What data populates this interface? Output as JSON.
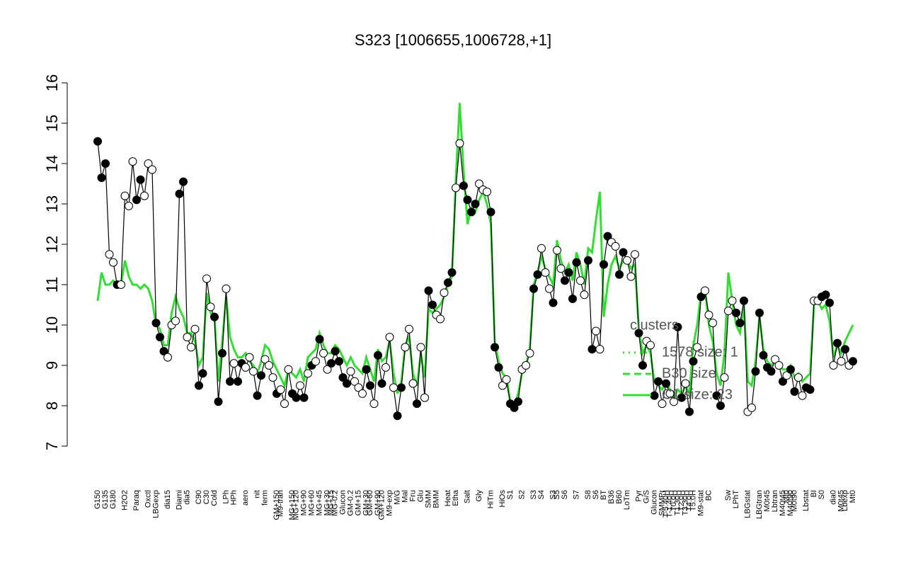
{
  "chart_data": {
    "type": "line",
    "title": "S323 [1006655,1006728,+1]",
    "ylim": [
      7,
      16
    ],
    "yticks": [
      7,
      8,
      9,
      10,
      11,
      12,
      13,
      14,
      15,
      16
    ],
    "categories": [
      "G150",
      null,
      "G135",
      null,
      "G180",
      null,
      null,
      "H2O2",
      null,
      null,
      "Paraq",
      null,
      null,
      "Oxctl",
      null,
      "LBGexp",
      null,
      null,
      "dia15",
      null,
      null,
      "Diami",
      null,
      "dia5",
      null,
      null,
      "C90",
      null,
      "C30",
      null,
      "Cold",
      null,
      null,
      "LPh",
      null,
      "HPh",
      null,
      null,
      "aero",
      null,
      null,
      "nit",
      null,
      "ferm",
      null,
      null,
      "GM+150",
      "M9-tran",
      null,
      null,
      "MG+150",
      "MG+120",
      null,
      "MG+90",
      null,
      "MG+60",
      null,
      "MG+45",
      null,
      "MG+30",
      "MG+15",
      "MG-0.2",
      null,
      "Glucon",
      null,
      "GM-0.2",
      null,
      "GM+15",
      null,
      "GM+30",
      "GM+60",
      null,
      "GM+90",
      "GM+120",
      null,
      "M9-exp",
      null,
      "M/G",
      null,
      "Mal",
      null,
      "Fru",
      null,
      "Glu",
      null,
      "SMM",
      null,
      "BMM",
      null,
      null,
      "Heat",
      null,
      "Etha",
      null,
      null,
      "Salt",
      null,
      null,
      "Gly",
      null,
      null,
      "HiTm",
      null,
      null,
      "HiOs",
      null,
      "S1",
      null,
      null,
      "S2",
      null,
      null,
      "S3",
      null,
      "S4",
      null,
      null,
      "S3",
      "S5",
      null,
      "S6",
      null,
      null,
      "S7",
      null,
      null,
      "S8",
      null,
      "S6",
      null,
      "BT",
      null,
      "B36",
      null,
      "B60",
      null,
      "LoTm",
      null,
      null,
      "Pyr",
      null,
      "G/S",
      null,
      "Glucon",
      null,
      "SMMPr",
      "T-5.40H",
      "T-1.40H",
      "T0.0H",
      "T1.30H",
      "T2.0H",
      "T3.30H",
      "T4.0H",
      "T5.0H",
      null,
      "M9-stat",
      null,
      "BC",
      null,
      null,
      null,
      null,
      "Sw",
      null,
      "LPhT",
      null,
      null,
      "LBGstat",
      null,
      null,
      "LBGtran",
      null,
      "M0t45",
      null,
      "Lbtran",
      null,
      "M40t45",
      "Mt0",
      "M40t90",
      "M0t90",
      null,
      null,
      "Lbstat",
      null,
      "BI",
      null,
      "S0",
      null,
      null,
      "dia0",
      null,
      "M0t45",
      "Lbexp",
      null,
      "Mt0"
    ],
    "series": [
      {
        "color": "#000000",
        "values": [
          14.55,
          13.65,
          14.0,
          11.75,
          11.55,
          11.0,
          11.0,
          13.2,
          12.95,
          14.05,
          13.1,
          13.6,
          13.2,
          14.0,
          13.85,
          10.05,
          9.7,
          9.35,
          9.2,
          10.0,
          10.1,
          13.25,
          13.55,
          9.7,
          9.45,
          9.9,
          8.5,
          8.8,
          11.15,
          10.45,
          10.2,
          8.1,
          9.3,
          10.9,
          8.6,
          9.05,
          8.6,
          9.05,
          8.95,
          9.2,
          8.85,
          8.25,
          8.75,
          9.15,
          9.0,
          8.7,
          8.3,
          8.4,
          8.05,
          8.9,
          8.3,
          8.2,
          8.5,
          8.2,
          8.8,
          9.0,
          9.1,
          9.65,
          9.3,
          8.9,
          9.05,
          9.35,
          9.1,
          8.7,
          8.55,
          8.85,
          8.6,
          8.45,
          8.3,
          8.9,
          8.5,
          8.05,
          9.25,
          8.55,
          8.95,
          9.7,
          8.45,
          7.75,
          8.45,
          9.45,
          9.9,
          8.55,
          8.05,
          9.45,
          8.2,
          10.85,
          10.5,
          10.25,
          10.15,
          10.8,
          11.05,
          11.3,
          13.4,
          14.5,
          13.45,
          13.1,
          12.8,
          13.0,
          13.5,
          13.35,
          13.3,
          12.8,
          9.45,
          8.95,
          8.5,
          8.65,
          8.05,
          7.95,
          8.1,
          8.9,
          9.0,
          9.3,
          10.9,
          11.25,
          11.9,
          11.3,
          10.9,
          10.55,
          11.85,
          11.4,
          11.1,
          11.3,
          10.65,
          11.55,
          11.1,
          10.75,
          11.6,
          9.4,
          9.85,
          9.4,
          11.5,
          12.2,
          12.05,
          11.95,
          11.25,
          11.8,
          11.6,
          11.2,
          11.75,
          9.8,
          9.0,
          9.6,
          9.5,
          8.25,
          8.6,
          8.05,
          8.55,
          8.3,
          8.1,
          9.95,
          8.2,
          8.55,
          7.85,
          9.1,
          9.45,
          10.7,
          10.85,
          10.25,
          10.05,
          8.25,
          8.0,
          8.7,
          10.35,
          10.6,
          10.3,
          10.05,
          10.6,
          7.85,
          7.95,
          8.85,
          10.3,
          9.25,
          8.95,
          8.85,
          9.15,
          9.0,
          8.6,
          8.75,
          8.9,
          8.35,
          8.7,
          8.25,
          8.45,
          8.4,
          10.6,
          10.6,
          10.7,
          10.75,
          10.55,
          9.0,
          9.55,
          9.1,
          9.4,
          9.0,
          9.1
        ],
        "point_filled": [
          1,
          1,
          1,
          0,
          0,
          1,
          0,
          0,
          0,
          0,
          1,
          1,
          0,
          0,
          0,
          1,
          1,
          1,
          0,
          0,
          0,
          1,
          1,
          0,
          0,
          0,
          1,
          1,
          0,
          0,
          1,
          1,
          1,
          0,
          1,
          0,
          1,
          1,
          0,
          0,
          0,
          1,
          1,
          0,
          0,
          0,
          1,
          0,
          0,
          0,
          1,
          1,
          0,
          1,
          0,
          1,
          0,
          1,
          0,
          0,
          1,
          1,
          1,
          1,
          1,
          0,
          0,
          0,
          0,
          1,
          1,
          0,
          1,
          1,
          0,
          0,
          0,
          1,
          1,
          0,
          0,
          0,
          1,
          0,
          0,
          1,
          1,
          0,
          0,
          0,
          1,
          1,
          0,
          0,
          1,
          1,
          1,
          1,
          0,
          0,
          0,
          1,
          1,
          1,
          0,
          0,
          1,
          1,
          1,
          0,
          0,
          0,
          1,
          1,
          0,
          0,
          0,
          1,
          0,
          0,
          1,
          1,
          1,
          1,
          0,
          0,
          1,
          1,
          0,
          0,
          1,
          1,
          0,
          0,
          1,
          1,
          0,
          0,
          0,
          1,
          1,
          0,
          0,
          1,
          1,
          0,
          1,
          0,
          0,
          1,
          1,
          0,
          1,
          1,
          0,
          1,
          0,
          0,
          0,
          1,
          1,
          0,
          0,
          0,
          1,
          1,
          1,
          0,
          0,
          1,
          1,
          1,
          1,
          1,
          0,
          0,
          1,
          0,
          1,
          1,
          0,
          0,
          1,
          1,
          0,
          0,
          1,
          1,
          1,
          0,
          1,
          0,
          1,
          0,
          1
        ]
      },
      {
        "color": "#33dd33",
        "values": [
          10.6,
          11.3,
          11.0,
          11.0,
          11.1,
          11.0,
          11.0,
          11.6,
          11.2,
          11.0,
          11.0,
          10.9,
          11.0,
          10.9,
          10.6,
          10.0,
          9.9,
          9.5,
          9.5,
          10.3,
          10.7,
          10.4,
          10.2,
          9.8,
          9.8,
          9.6,
          9.0,
          9.2,
          10.8,
          10.3,
          10.2,
          8.6,
          9.6,
          10.7,
          9.7,
          9.4,
          9.2,
          9.2,
          9.3,
          9.1,
          9.0,
          8.8,
          9.1,
          9.5,
          9.4,
          9.1,
          8.9,
          8.7,
          8.5,
          8.9,
          8.8,
          8.7,
          8.9,
          8.6,
          9.2,
          9.3,
          9.4,
          9.8,
          9.5,
          9.3,
          9.3,
          9.5,
          9.4,
          9.2,
          9.0,
          9.2,
          9.0,
          8.9,
          8.8,
          9.2,
          8.9,
          8.6,
          9.4,
          9.1,
          9.2,
          9.6,
          8.8,
          8.3,
          8.6,
          9.5,
          9.7,
          8.8,
          8.5,
          9.3,
          8.7,
          10.4,
          10.3,
          10.4,
          10.5,
          10.7,
          11.0,
          11.2,
          13.6,
          15.5,
          13.8,
          12.5,
          12.9,
          12.8,
          13.1,
          13.3,
          13.0,
          12.5,
          9.6,
          9.1,
          8.8,
          8.7,
          8.1,
          8.0,
          8.3,
          8.8,
          9.0,
          9.4,
          11.0,
          11.3,
          11.7,
          11.4,
          11.2,
          11.0,
          12.1,
          11.6,
          11.3,
          11.5,
          11.1,
          11.8,
          11.5,
          11.0,
          11.9,
          11.8,
          12.6,
          13.3,
          10.2,
          11.0,
          11.5,
          11.7,
          11.4,
          11.6,
          11.6,
          11.4,
          11.5,
          9.9,
          9.3,
          9.5,
          9.3,
          8.6,
          8.5,
          8.4,
          8.6,
          8.4,
          8.2,
          8.4,
          8.3,
          8.5,
          8.3,
          9.5,
          10.0,
          10.8,
          10.9,
          10.0,
          9.6,
          8.8,
          8.5,
          9.3,
          11.3,
          10.6,
          10.0,
          9.8,
          10.5,
          8.6,
          8.5,
          9.1,
          10.2,
          9.4,
          9.1,
          9.0,
          9.1,
          9.0,
          8.9,
          8.9,
          9.0,
          8.7,
          8.8,
          8.6,
          8.7,
          8.8,
          10.5,
          10.6,
          10.4,
          10.5,
          10.1,
          9.2,
          9.5,
          9.3,
          9.6,
          9.8,
          10.0
        ]
      }
    ],
    "legend": {
      "title": "clusters",
      "entries": [
        "1578 size: 1",
        "B30 size",
        "C1 size: 23"
      ]
    }
  }
}
